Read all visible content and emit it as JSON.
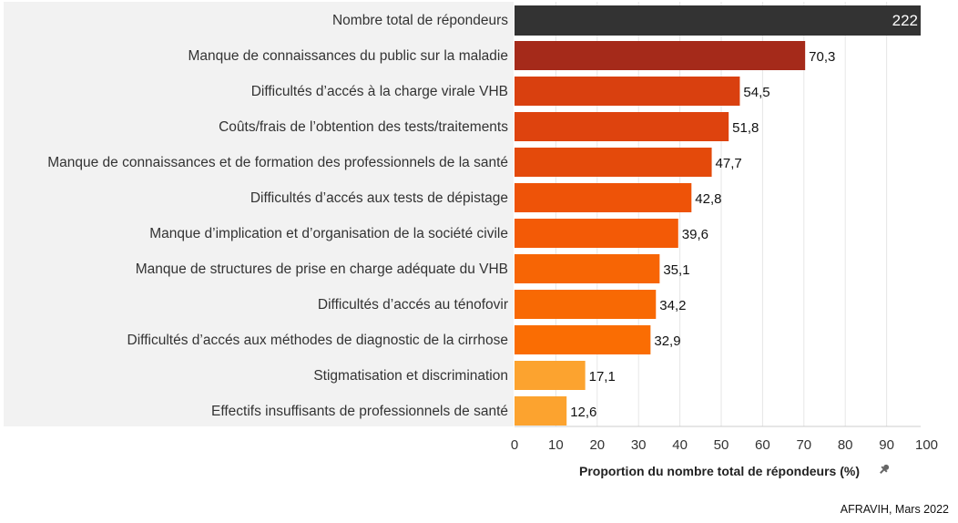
{
  "chart_data": {
    "type": "bar",
    "orientation": "horizontal",
    "title": "",
    "xlabel": "Proportion du nombre total de répondeurs (%)",
    "ylabel": "",
    "xlim": [
      0,
      100
    ],
    "xticks": [
      "0",
      "10",
      "20",
      "30",
      "40",
      "50",
      "60",
      "70",
      "80",
      "90",
      "100"
    ],
    "grid": true,
    "total": {
      "label": "Nombre total de répondeurs",
      "value": "222",
      "color": "#333333"
    },
    "categories": [
      "Manque de connaissances du public sur la maladie",
      "Difficultés d’accés à la charge virale VHB",
      "Coûts/frais de l’obtention des tests/traitements",
      "Manque de connaissances et de formation des professionnels de la santé",
      "Difficultés d’accés aux tests de dépistage",
      "Manque d’implication et d’organisation de la société civile",
      "Manque de structures de prise en charge adéquate du VHB",
      "Difficultés d’accés au ténofovir",
      "Difficultés d’accés aux méthodes de diagnostic de la cirrhose",
      "Stigmatisation et discrimination",
      "Effectifs insuffisants de professionnels de santé"
    ],
    "values": [
      70.3,
      54.5,
      51.8,
      47.7,
      42.8,
      39.6,
      35.1,
      34.2,
      32.9,
      17.1,
      12.6
    ],
    "value_labels": [
      "70,3",
      "54,5",
      "51,8",
      "47,7",
      "42,8",
      "39,6",
      "35,1",
      "34,2",
      "32,9",
      "17,1",
      "12,6"
    ],
    "colors": [
      "#A52A1A",
      "#D9400F",
      "#DE430E",
      "#E44A0B",
      "#EE5308",
      "#F35A06",
      "#F76505",
      "#F86904",
      "#FA6D03",
      "#FCA32F",
      "#FCA32F"
    ]
  },
  "source": "AFRAVIH, Mars 2022",
  "pin_icon": "pin-icon"
}
